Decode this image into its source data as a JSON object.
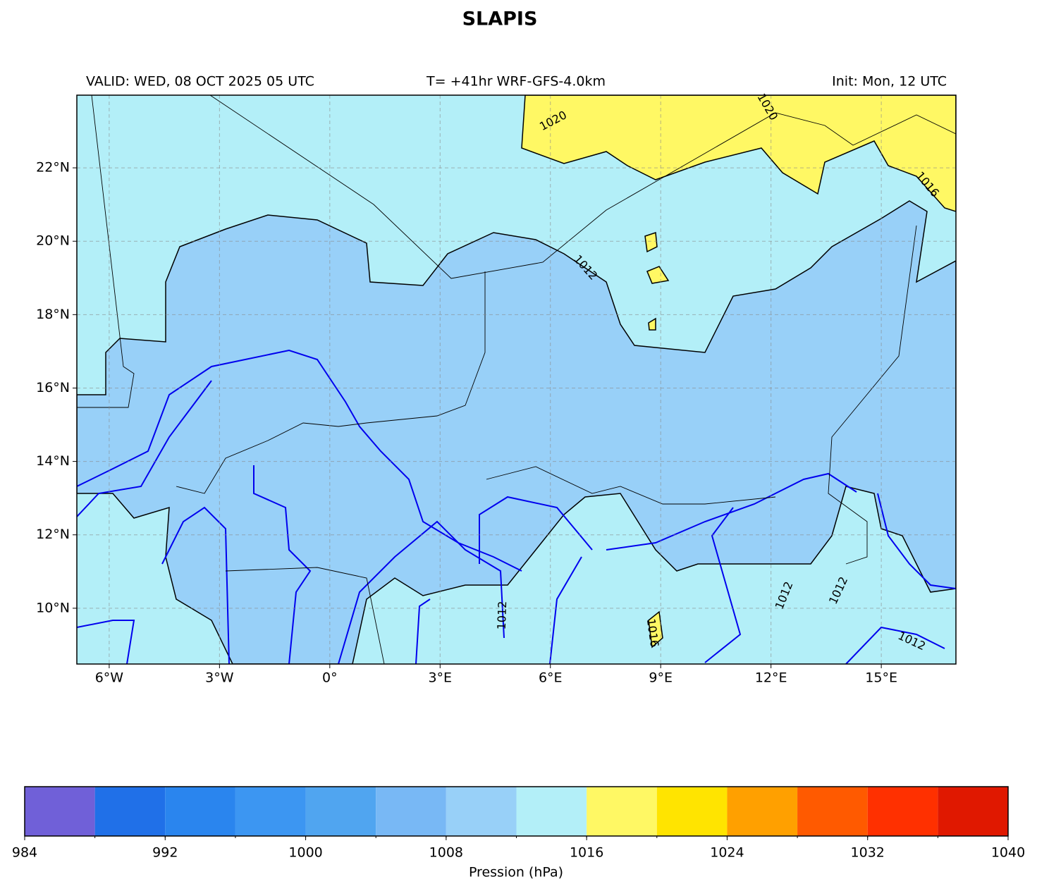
{
  "title": "SLAPIS",
  "header": {
    "valid": "VALID: WED, 08 OCT 2025 05 UTC",
    "run": "T= +41hr WRF-GFS-4.0km",
    "init": "Init: Mon, 12 UTC"
  },
  "map": {
    "lonlim": [
      -6.88,
      17.03
    ],
    "latlim": [
      8.48,
      23.98
    ],
    "grid": true,
    "lon_ticks": [
      {
        "value": -6,
        "label": "6°W"
      },
      {
        "value": -3,
        "label": "3°W"
      },
      {
        "value": 0,
        "label": "0°"
      },
      {
        "value": 3,
        "label": "3°E"
      },
      {
        "value": 6,
        "label": "6°E"
      },
      {
        "value": 9,
        "label": "9°E"
      },
      {
        "value": 12,
        "label": "12°E"
      },
      {
        "value": 15,
        "label": "15°E"
      }
    ],
    "lat_ticks": [
      {
        "value": 22,
        "label": "22°N"
      },
      {
        "value": 20,
        "label": "20°N"
      },
      {
        "value": 18,
        "label": "18°N"
      },
      {
        "value": 16,
        "label": "16°N"
      },
      {
        "value": 14,
        "label": "14°N"
      },
      {
        "value": 12,
        "label": "12°N"
      },
      {
        "value": 10,
        "label": "10°N"
      }
    ],
    "contour_labels": [
      1020,
      1020,
      1016,
      1012,
      1012,
      1012,
      1016,
      1012,
      1012
    ]
  },
  "colorbar": {
    "label": "Pression (hPa)",
    "bounds": [
      984,
      988,
      992,
      996,
      1000,
      1004,
      1008,
      1012,
      1016,
      1020,
      1024,
      1028,
      1032,
      1036,
      1040
    ],
    "colors": [
      "#7060d8",
      "#2070e8",
      "#2a85ee",
      "#3c96f2",
      "#50a5f0",
      "#78b8f5",
      "#98d0f8",
      "#b3eff8",
      "#fff864",
      "#ffe400",
      "#ffa000",
      "#ff5a00",
      "#ff3000",
      "#e01800"
    ],
    "ticks": [
      984,
      992,
      1000,
      1008,
      1016,
      1024,
      1032,
      1040
    ]
  }
}
